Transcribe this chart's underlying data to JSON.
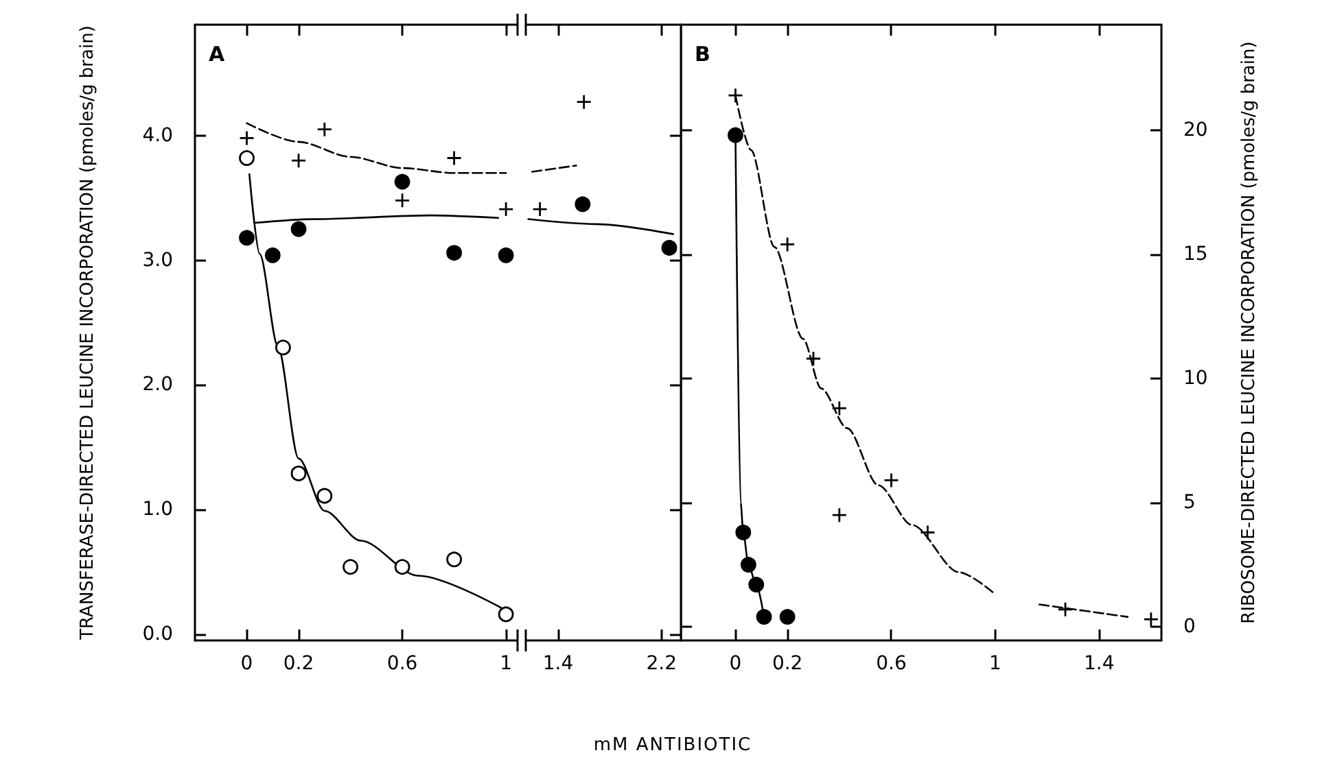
{
  "chart_data": [
    {
      "type": "scatter",
      "xlabel": "mM ANTIBIOTIC",
      "ylabel": "TRANSFERASE-DIRECTED LEUCINE INCORPORATION (pmoles/g brain)",
      "annotations": [
        "A"
      ],
      "xlim": [
        -0.2,
        1.05
      ],
      "xticks": [
        0,
        0.2,
        0.6,
        1
      ],
      "ylim": [
        -0.05,
        4.89
      ],
      "yticks": [
        {
          "value": 0,
          "label": "0.0"
        },
        {
          "value": 1,
          "label": "1.0"
        },
        {
          "value": 2,
          "label": "2.0"
        },
        {
          "value": 3,
          "label": "3.0"
        },
        {
          "value": 4,
          "label": "4.0"
        }
      ],
      "series": [
        {
          "marker": "cross",
          "color": "#000000",
          "x": [
            0,
            0.2,
            0.3,
            0.6,
            0.8,
            1.0
          ],
          "values": [
            3.98,
            3.8,
            4.05,
            3.48,
            3.82,
            3.41
          ]
        },
        {
          "marker": "circle",
          "color": "#000000",
          "x": [
            0,
            0.1,
            0.2,
            0.6,
            0.8,
            1.0
          ],
          "values": [
            3.18,
            3.04,
            3.25,
            3.63,
            3.06,
            3.04
          ]
        },
        {
          "marker": "circle",
          "color": "#ffffff",
          "x": [
            0,
            0.14,
            0.2,
            0.3,
            0.4,
            0.6,
            0.8,
            1.0
          ],
          "values": [
            3.82,
            2.3,
            1.29,
            1.11,
            0.54,
            0.54,
            0.6,
            0.16
          ]
        },
        {
          "type": "line",
          "marker": "none",
          "line_style": "dashed",
          "color": "#000000",
          "x": [
            0,
            0.2,
            0.4,
            0.6,
            0.8,
            1.0
          ],
          "values": [
            4.1,
            3.95,
            3.83,
            3.74,
            3.7,
            3.7
          ]
        },
        {
          "type": "line",
          "marker": "none",
          "line_style": "solid",
          "color": "#000000",
          "x": [
            0.03,
            0.26,
            0.71,
            0.97
          ],
          "values": [
            3.3,
            3.33,
            3.36,
            3.34
          ]
        },
        {
          "type": "line",
          "marker": "none",
          "line_style": "solid",
          "color": "#000000",
          "x": [
            0.01,
            0.05,
            0.12,
            0.2,
            0.3,
            0.44,
            0.66,
            1.0
          ],
          "values": [
            3.69,
            3.05,
            2.31,
            1.41,
            0.99,
            0.75,
            0.47,
            0.19
          ]
        }
      ]
    },
    {
      "type": "scatter",
      "tick_labels": "x",
      "xlim": [
        1.14,
        2.35
      ],
      "xticks": [
        1.4,
        2.2
      ],
      "ylim": [
        -0.05,
        4.89
      ],
      "yticks": [
        0,
        1,
        2,
        3,
        4
      ],
      "series": [
        {
          "marker": "cross",
          "color": "#000000",
          "x": [
            1.26,
            1.6
          ],
          "values": [
            3.41,
            4.27
          ]
        },
        {
          "marker": "circle",
          "color": "#000000",
          "x": [
            1.59,
            2.26
          ],
          "values": [
            3.45,
            3.1
          ]
        },
        {
          "type": "line",
          "marker": "none",
          "line_style": "dashed",
          "color": "#000000",
          "x": [
            1.2,
            1.54
          ],
          "values": [
            3.71,
            3.76
          ]
        },
        {
          "type": "line",
          "marker": "none",
          "line_style": "solid",
          "color": "#000000",
          "x": [
            1.17,
            1.7,
            2.29
          ],
          "values": [
            3.33,
            3.29,
            3.21
          ]
        }
      ]
    },
    {
      "type": "scatter",
      "ylabel": "RIBOSOME-DIRECTED LEUCINE INCORPORATION (pmoles/g brain)",
      "annotations": [
        "B"
      ],
      "xlim": [
        -0.21,
        1.64
      ],
      "xticks": [
        0,
        0.2,
        0.6,
        1,
        1.4
      ],
      "ylim": [
        -0.55,
        24.25
      ],
      "yticks": [
        0,
        5,
        10,
        15,
        20
      ],
      "series": [
        {
          "marker": "cross",
          "color": "#000000",
          "x": [
            0,
            0.2,
            0.3,
            0.4,
            0.6,
            0.4,
            0.74,
            1.27,
            1.6
          ],
          "values": [
            21.4,
            15.4,
            10.8,
            8.8,
            5.9,
            4.5,
            3.8,
            0.7,
            0.3
          ]
        },
        {
          "marker": "circle",
          "color": "#000000",
          "x": [
            0,
            0.03,
            0.05,
            0.08,
            0.11,
            0.2
          ],
          "values": [
            19.8,
            3.8,
            2.5,
            1.7,
            0.4,
            0.4
          ]
        },
        {
          "type": "line",
          "marker": "none",
          "line_style": "solid",
          "color": "#000000",
          "x": [
            0,
            0.02,
            0.03,
            0.05,
            0.08,
            0.11
          ],
          "values": [
            19.8,
            5,
            3.8,
            2.5,
            1.7,
            0.4
          ]
        },
        {
          "type": "line",
          "marker": "none",
          "line_style": "dashed",
          "color": "#000000",
          "x": [
            0,
            0.06,
            0.15,
            0.26,
            0.33,
            0.43,
            0.55,
            0.68,
            0.86,
            0.99
          ],
          "values": [
            21.4,
            19.2,
            15.3,
            11.6,
            9.6,
            8.0,
            5.7,
            4.1,
            2.2,
            1.4
          ]
        },
        {
          "type": "line",
          "marker": "none",
          "line_style": "dashed",
          "color": "#000000",
          "x": [
            1.17,
            1.51
          ],
          "values": [
            0.9,
            0.4
          ]
        }
      ]
    }
  ]
}
